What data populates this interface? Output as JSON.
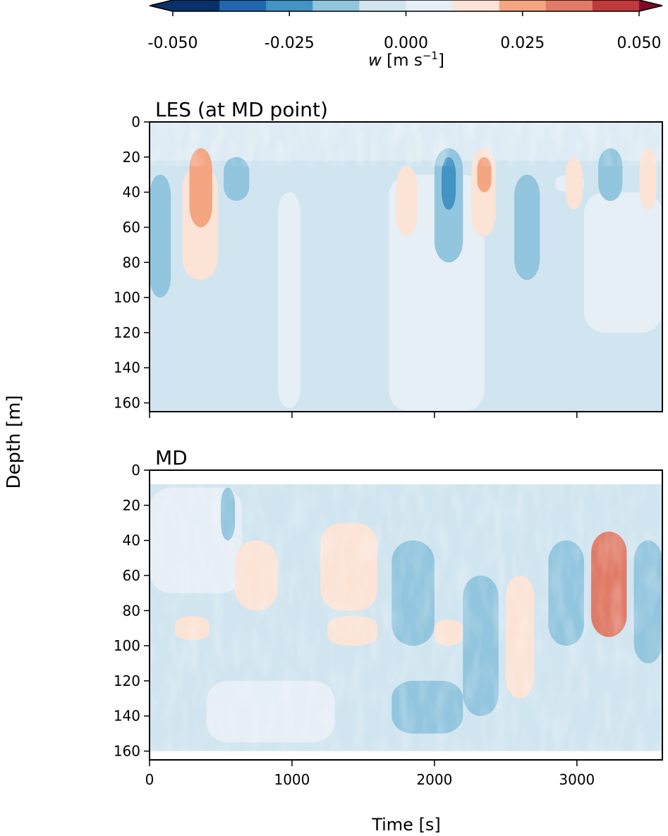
{
  "colorbar": {
    "label_var": "w",
    "label_units": " [m s",
    "label_exp": "−1",
    "label_close": "]",
    "ticks": [
      -0.05,
      -0.025,
      0.0,
      0.025,
      0.05
    ],
    "tick_labels": [
      "-0.050",
      "-0.025",
      "0.000",
      "0.025",
      "0.050"
    ],
    "levels": [
      -0.05,
      -0.04,
      -0.03,
      -0.02,
      -0.01,
      0.0,
      0.01,
      0.02,
      0.03,
      0.04,
      0.05
    ],
    "colors": [
      "#08306b",
      "#2166ac",
      "#4393c3",
      "#92c5de",
      "#d1e5f0",
      "#e6eef6",
      "#fbe3d6",
      "#f4a582",
      "#e07b67",
      "#c0393b",
      "#800a26"
    ],
    "extend": "both",
    "orientation": "horizontal",
    "placement": "top"
  },
  "shared": {
    "ylabel": "Depth [m]",
    "xlabel": "Time [s]"
  },
  "chart_data": [
    {
      "type": "heatmap",
      "title": "LES (at MD point)",
      "xlim": [
        0,
        3600
      ],
      "ylim": [
        165,
        0
      ],
      "x_ticks": [
        0,
        1000,
        2000,
        3000
      ],
      "x_tick_labels": [
        "",
        "",
        "",
        ""
      ],
      "y_ticks": [
        0,
        20,
        40,
        60,
        80,
        100,
        120,
        140,
        160
      ],
      "y_tick_labels": [
        "0",
        "20",
        "40",
        "60",
        "80",
        "100",
        "120",
        "140",
        "160"
      ],
      "variable": "w",
      "features": [
        {
          "t0": 0,
          "t1": 150,
          "z_top": 30,
          "z_bottom": 100,
          "w": -0.013
        },
        {
          "t0": 230,
          "t1": 480,
          "z_top": 25,
          "z_bottom": 90,
          "w": 0.013
        },
        {
          "t0": 280,
          "t1": 440,
          "z_top": 15,
          "z_bottom": 60,
          "w": 0.022
        },
        {
          "t0": 520,
          "t1": 700,
          "z_top": 20,
          "z_bottom": 45,
          "w": -0.015
        },
        {
          "t0": 900,
          "t1": 1060,
          "z_top": 40,
          "z_bottom": 163,
          "w": 0.004
        },
        {
          "t0": 1680,
          "t1": 2350,
          "z_top": 30,
          "z_bottom": 165,
          "w": 0.004
        },
        {
          "t0": 1730,
          "t1": 1880,
          "z_top": 25,
          "z_bottom": 65,
          "w": 0.014
        },
        {
          "t0": 2000,
          "t1": 2200,
          "z_top": 15,
          "z_bottom": 80,
          "w": -0.012
        },
        {
          "t0": 2050,
          "t1": 2150,
          "z_top": 20,
          "z_bottom": 50,
          "w": -0.028
        },
        {
          "t0": 2260,
          "t1": 2430,
          "z_top": 15,
          "z_bottom": 65,
          "w": 0.018
        },
        {
          "t0": 2300,
          "t1": 2400,
          "z_top": 20,
          "z_bottom": 40,
          "w": 0.028
        },
        {
          "t0": 2560,
          "t1": 2740,
          "z_top": 30,
          "z_bottom": 90,
          "w": -0.013
        },
        {
          "t0": 2850,
          "t1": 3050,
          "z_top": 30,
          "z_bottom": 40,
          "w": 0.005
        },
        {
          "t0": 2920,
          "t1": 3040,
          "z_top": 20,
          "z_bottom": 50,
          "w": 0.014
        },
        {
          "t0": 3050,
          "t1": 3600,
          "z_top": 40,
          "z_bottom": 120,
          "w": 0.004
        },
        {
          "t0": 3150,
          "t1": 3320,
          "z_top": 15,
          "z_bottom": 45,
          "w": -0.014
        },
        {
          "t0": 3440,
          "t1": 3560,
          "z_top": 15,
          "z_bottom": 50,
          "w": 0.015
        }
      ]
    },
    {
      "type": "heatmap",
      "title": "MD",
      "xlim": [
        0,
        3600
      ],
      "ylim": [
        165,
        0
      ],
      "x_ticks": [
        0,
        1000,
        2000,
        3000
      ],
      "x_tick_labels": [
        "0",
        "1000",
        "2000",
        "3000"
      ],
      "y_ticks": [
        0,
        20,
        40,
        60,
        80,
        100,
        120,
        140,
        160
      ],
      "y_tick_labels": [
        "0",
        "20",
        "40",
        "60",
        "80",
        "100",
        "120",
        "140",
        "160"
      ],
      "variable": "w",
      "data_depth_range": [
        8,
        160
      ],
      "features": [
        {
          "t0": 0,
          "t1": 650,
          "z_top": 10,
          "z_bottom": 70,
          "w": 0.008
        },
        {
          "t0": 180,
          "t1": 420,
          "z_top": 83,
          "z_bottom": 97,
          "w": 0.018
        },
        {
          "t0": 600,
          "t1": 900,
          "z_top": 40,
          "z_bottom": 80,
          "w": 0.015
        },
        {
          "t0": 500,
          "t1": 600,
          "z_top": 10,
          "z_bottom": 40,
          "w": -0.012
        },
        {
          "t0": 1250,
          "t1": 1600,
          "z_top": 83,
          "z_bottom": 100,
          "w": 0.015
        },
        {
          "t0": 1200,
          "t1": 1600,
          "z_top": 30,
          "z_bottom": 80,
          "w": 0.01
        },
        {
          "t0": 1700,
          "t1": 2000,
          "z_top": 40,
          "z_bottom": 100,
          "w": -0.013
        },
        {
          "t0": 1700,
          "t1": 2200,
          "z_top": 120,
          "z_bottom": 150,
          "w": -0.012
        },
        {
          "t0": 2000,
          "t1": 2200,
          "z_top": 85,
          "z_bottom": 100,
          "w": 0.013
        },
        {
          "t0": 2200,
          "t1": 2450,
          "z_top": 60,
          "z_bottom": 140,
          "w": -0.014
        },
        {
          "t0": 2500,
          "t1": 2700,
          "z_top": 60,
          "z_bottom": 130,
          "w": 0.018
        },
        {
          "t0": 2800,
          "t1": 3050,
          "z_top": 40,
          "z_bottom": 100,
          "w": -0.018
        },
        {
          "t0": 3100,
          "t1": 3350,
          "z_top": 35,
          "z_bottom": 95,
          "w": 0.03
        },
        {
          "t0": 3400,
          "t1": 3600,
          "z_top": 40,
          "z_bottom": 110,
          "w": -0.012
        },
        {
          "t0": 400,
          "t1": 1300,
          "z_top": 120,
          "z_bottom": 155,
          "w": 0.008
        }
      ]
    }
  ]
}
